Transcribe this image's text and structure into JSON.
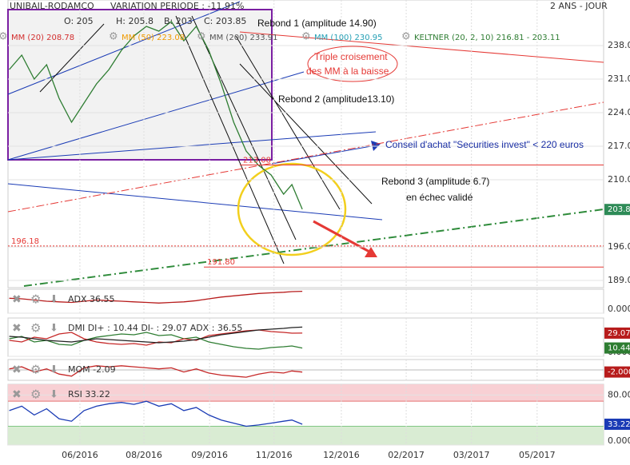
{
  "chart_data": [
    {
      "type": "line",
      "title": "UNIBAIL-RODAMCO",
      "subtitle": "VARIATION PERIODE : -11.91%",
      "period": "2 ANS - JOUR",
      "ohlc": [
        "O: 205",
        "H: 205.8",
        "B: 203",
        "C: 203.85"
      ],
      "indicators": [
        {
          "text": "MM (20) 208.78",
          "color": "#d32f2f"
        },
        {
          "text": "MM (50) 223.08",
          "color": "#ef9a00"
        },
        {
          "text": "MM (200) 233.91",
          "color": "#555555"
        },
        {
          "text": "MM (100) 230.95",
          "color": "#26a0b5"
        },
        {
          "text": "KELTNER (20, 2, 10) 216.81 - 203.11",
          "color": "#2e7d32"
        }
      ],
      "annotations": [
        "Rebond 1 (amplitude 14.90)",
        "Triple croisement",
        "des MM à la baisse",
        "Rebond 2 (amplitude13.10)",
        "Conseil d'achat \"Securities invest\" < 220 euros",
        "Rebond 3 (amplitude 6.7)",
        "en échec validé"
      ],
      "x": [
        3.3,
        3.6,
        3.9,
        4.2,
        4.5,
        4.8,
        5.1,
        5.4,
        5.7,
        6.0,
        6.3,
        6.6,
        6.9,
        7.2,
        7.5,
        7.8,
        8.1,
        8.4,
        8.7,
        9.0,
        9.3,
        9.6,
        9.9,
        10.1,
        10.35
      ],
      "series": [
        {
          "color": "#2e7d32",
          "values": [
            233,
            236,
            231,
            234,
            227,
            222,
            226,
            230,
            233,
            237,
            240,
            242,
            241,
            243,
            239,
            242,
            237,
            230,
            222,
            216,
            213,
            211,
            207,
            209,
            203.85
          ]
        }
      ],
      "xlim": [
        3.27,
        17.6
      ],
      "xticks": [
        {
          "value": 5.0,
          "label": "06/2016"
        },
        {
          "value": 6.54,
          "label": "08/2016"
        },
        {
          "value": 8.12,
          "label": "09/2016"
        },
        {
          "value": 9.67,
          "label": "11/2016"
        },
        {
          "value": 11.29,
          "label": "12/2016"
        },
        {
          "value": 12.85,
          "label": "02/2017"
        },
        {
          "value": 14.42,
          "label": "03/2017"
        },
        {
          "value": 16.0,
          "label": "05/2017"
        }
      ],
      "ylim": [
        187.5,
        247.5
      ],
      "yticks": [
        {
          "value": 189,
          "label": "189.0"
        },
        {
          "value": 196,
          "label": "196.0"
        },
        {
          "value": 210,
          "label": "210.0"
        },
        {
          "value": 217,
          "label": "217.0"
        },
        {
          "value": 224,
          "label": "224.0"
        },
        {
          "value": 231,
          "label": "231.0"
        },
        {
          "value": 238,
          "label": "238.0"
        }
      ],
      "last_value": 203.8,
      "last_color": "#2e8b57",
      "levels": [
        196.18,
        {
          "value": 191.8,
          "label": "191.80"
        },
        213.08
      ],
      "grid": true
    },
    {
      "type": "line",
      "label": "ADX 36.55",
      "series": [
        {
          "color": "#b71c1c",
          "values": [
            25,
            24,
            22,
            20,
            19,
            18,
            20,
            22,
            21,
            20,
            19,
            18,
            17,
            18,
            19,
            21,
            24,
            27,
            29,
            31,
            33,
            34,
            35,
            36,
            36.55
          ]
        }
      ],
      "ylim": [
        0,
        40
      ],
      "yticks": [
        {
          "value": 0,
          "label": "0.000"
        }
      ]
    },
    {
      "type": "line",
      "label": "DMI DI+ : 10.44 DI- : 29.07 ADX : 36.55",
      "series": [
        {
          "color": "#2e7d32",
          "values": [
            22,
            25,
            18,
            20,
            15,
            14,
            20,
            24,
            26,
            28,
            27,
            30,
            26,
            27,
            22,
            24,
            18,
            15,
            12,
            10,
            9,
            11,
            12,
            13,
            10.44
          ]
        },
        {
          "color": "#c62828",
          "values": [
            20,
            18,
            24,
            22,
            28,
            30,
            22,
            18,
            16,
            15,
            16,
            14,
            18,
            17,
            22,
            20,
            26,
            28,
            30,
            32,
            33,
            31,
            30,
            29,
            29.07
          ]
        },
        {
          "color": "#222222",
          "values": [
            25,
            24,
            22,
            20,
            19,
            18,
            20,
            22,
            21,
            20,
            19,
            18,
            17,
            18,
            19,
            21,
            24,
            27,
            29,
            31,
            33,
            34,
            35,
            36,
            36.55
          ]
        }
      ],
      "ylim": [
        0,
        48
      ],
      "yticks": [
        {
          "value": 0,
          "label": "0.000"
        }
      ],
      "value_boxes": [
        {
          "value": 29.07,
          "color": "#b71c1c"
        },
        {
          "value": 10.44,
          "color": "#2e7d32"
        }
      ]
    },
    {
      "type": "line",
      "label": "MOM -2.09",
      "series": [
        {
          "color": "#c62828",
          "values": [
            1,
            3,
            -2,
            1,
            -4,
            -6,
            2,
            4,
            3,
            4,
            3,
            2,
            1,
            2,
            -2,
            1,
            -3,
            -5,
            -6,
            -7,
            -4,
            -2,
            -3,
            -1,
            -2.09
          ]
        }
      ],
      "ylim": [
        -10,
        10
      ],
      "value_boxes": [
        {
          "value": -2,
          "label": "-2.000",
          "color": "#b71c1c"
        }
      ]
    },
    {
      "type": "line",
      "label": "RSI 33.22",
      "series": [
        {
          "color": "#1a3bb5",
          "values": [
            55,
            62,
            48,
            58,
            42,
            38,
            55,
            62,
            66,
            68,
            65,
            70,
            62,
            66,
            55,
            60,
            48,
            40,
            35,
            30,
            32,
            35,
            38,
            40,
            33.22
          ]
        }
      ],
      "ylim": [
        0,
        97
      ],
      "yticks": [
        {
          "value": 0,
          "label": "0.000"
        },
        {
          "value": 80,
          "label": "80.00"
        }
      ],
      "zones": {
        "high": 70,
        "low": 30
      },
      "value_boxes": [
        {
          "value": 33.22,
          "color": "#1a3bb5"
        }
      ]
    }
  ]
}
